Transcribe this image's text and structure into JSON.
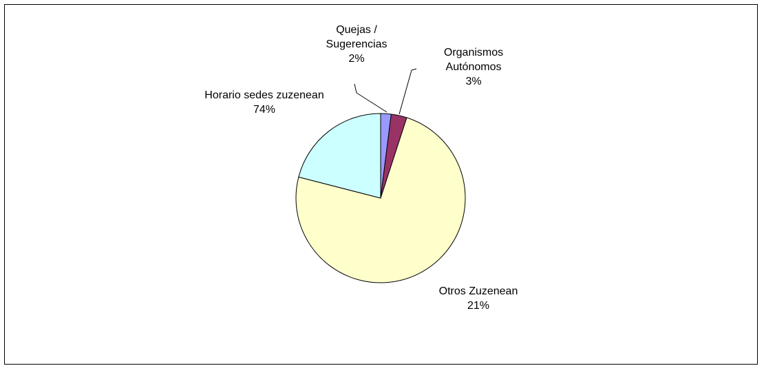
{
  "chart_data": {
    "type": "pie",
    "categories": [
      "Quejas / Sugerencias",
      "Organismos Autónomos",
      "Horario sedes zuzenean",
      "Otros Zuzenean"
    ],
    "values": [
      2,
      3,
      74,
      21
    ],
    "value_labels": [
      "2%",
      "3%",
      "74%",
      "21%"
    ],
    "colors": [
      "#9999ff",
      "#993366",
      "#ffffcc",
      "#ccffff"
    ]
  }
}
